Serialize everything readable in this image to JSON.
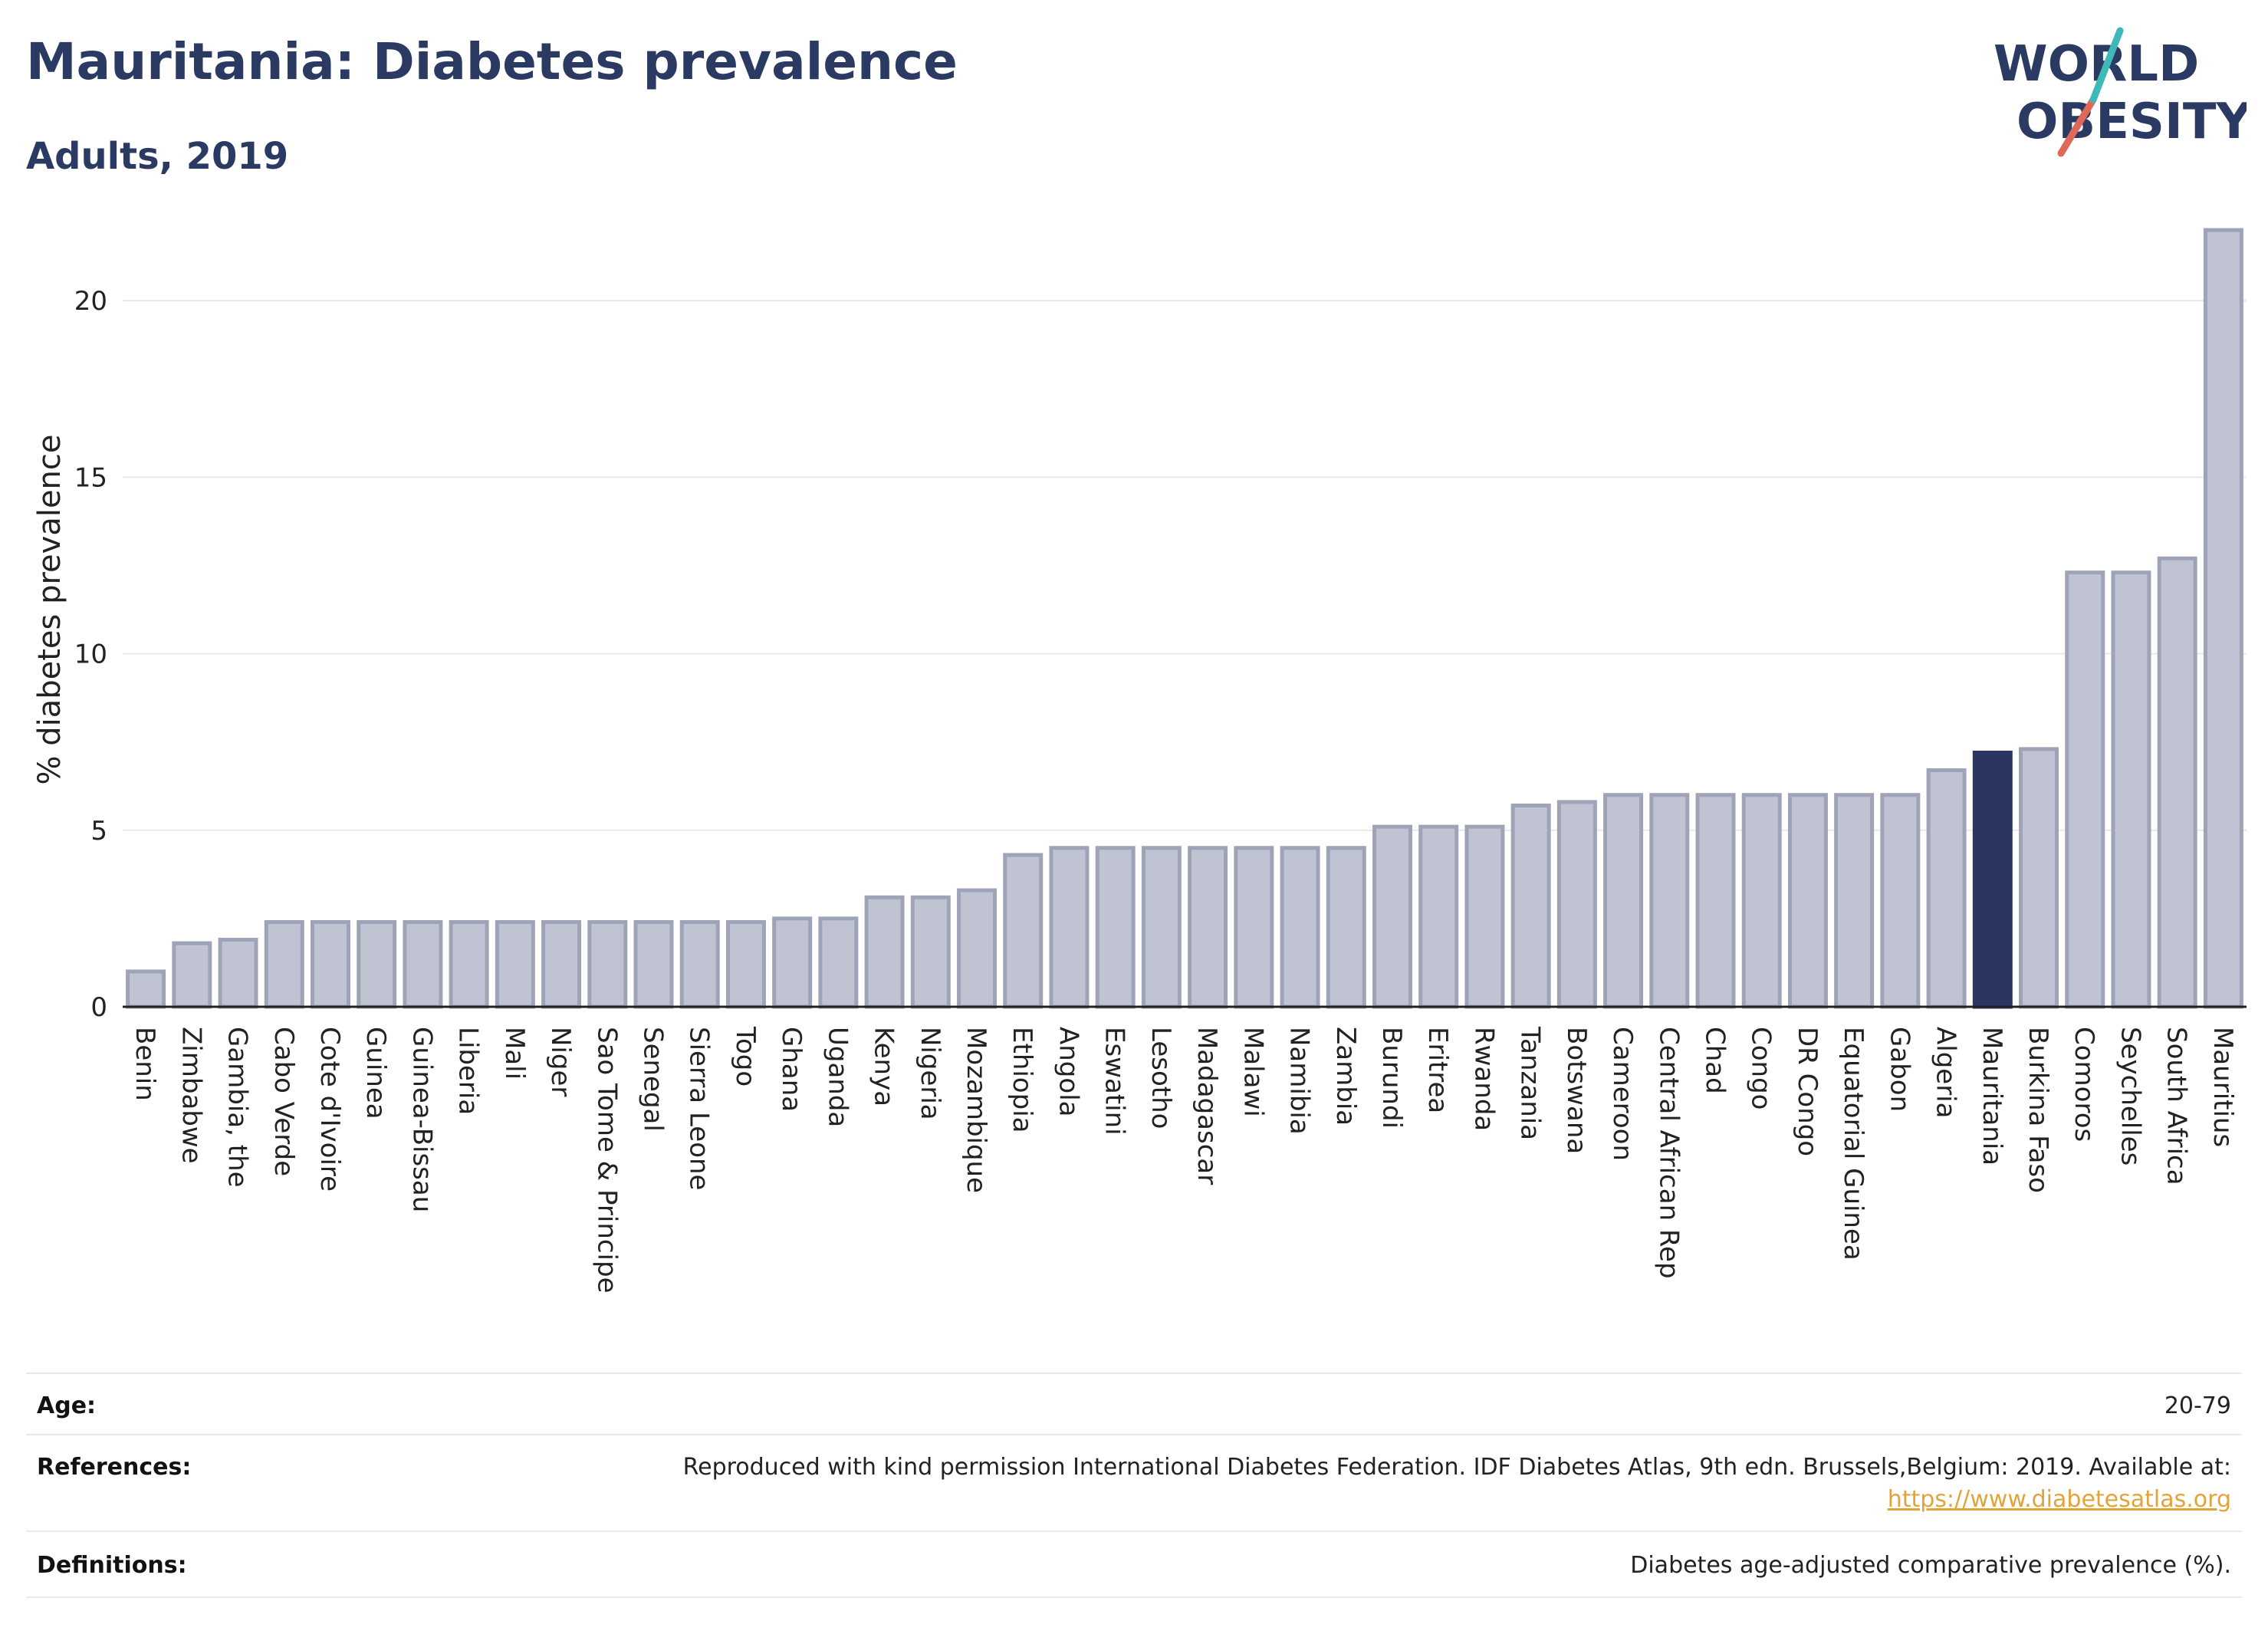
{
  "header": {
    "title": "Mauritania: Diabetes prevalence",
    "subtitle": "Adults, 2019",
    "logo_line1": "WORLD",
    "logo_line2": "OBESITY"
  },
  "chart_data": {
    "type": "bar",
    "title": "Mauritania: Diabetes prevalence",
    "subtitle": "Adults, 2019",
    "xlabel": "",
    "ylabel": "% diabetes prevalence",
    "ylim": [
      0,
      22
    ],
    "yticks": [
      0,
      5,
      10,
      15,
      20
    ],
    "grid": true,
    "highlight": "Mauritania",
    "colors": {
      "bar": "#c0c4d2",
      "bar_stroke": "#9ea3b8",
      "highlight": "#2b3660",
      "grid": "#e6e8ee",
      "axis": "#222222"
    },
    "categories": [
      "Benin",
      "Zimbabwe",
      "Gambia, the",
      "Cabo Verde",
      "Cote d'Ivoire",
      "Guinea",
      "Guinea-Bissau",
      "Liberia",
      "Mali",
      "Niger",
      "Sao Tome & Principe",
      "Senegal",
      "Sierra Leone",
      "Togo",
      "Ghana",
      "Uganda",
      "Kenya",
      "Nigeria",
      "Mozambique",
      "Ethiopia",
      "Angola",
      "Eswatini",
      "Lesotho",
      "Madagascar",
      "Malawi",
      "Namibia",
      "Zambia",
      "Burundi",
      "Eritrea",
      "Rwanda",
      "Tanzania",
      "Botswana",
      "Cameroon",
      "Central African Rep",
      "Chad",
      "Congo",
      "DR Congo",
      "Equatorial Guinea",
      "Gabon",
      "Algeria",
      "Mauritania",
      "Burkina Faso",
      "Comoros",
      "Seychelles",
      "South Africa",
      "Mauritius"
    ],
    "values": [
      1.0,
      1.8,
      1.9,
      2.4,
      2.4,
      2.4,
      2.4,
      2.4,
      2.4,
      2.4,
      2.4,
      2.4,
      2.4,
      2.4,
      2.5,
      2.5,
      3.1,
      3.1,
      3.3,
      4.3,
      4.5,
      4.5,
      4.5,
      4.5,
      4.5,
      4.5,
      4.5,
      5.1,
      5.1,
      5.1,
      5.7,
      5.8,
      6.0,
      6.0,
      6.0,
      6.0,
      6.0,
      6.0,
      6.0,
      6.7,
      7.2,
      7.3,
      12.3,
      12.3,
      12.7,
      22.0
    ]
  },
  "info": {
    "age_label": "Age:",
    "age_value": "20-79",
    "references_label": "References:",
    "references_text": "Reproduced with kind permission International Diabetes Federation. IDF Diabetes Atlas, 9th edn. Brussels,Belgium: 2019. Available at:",
    "references_link": "https://www.diabetesatlas.org",
    "definitions_label": "Definitions:",
    "definitions_value": "Diabetes age-adjusted comparative prevalence (%)."
  }
}
